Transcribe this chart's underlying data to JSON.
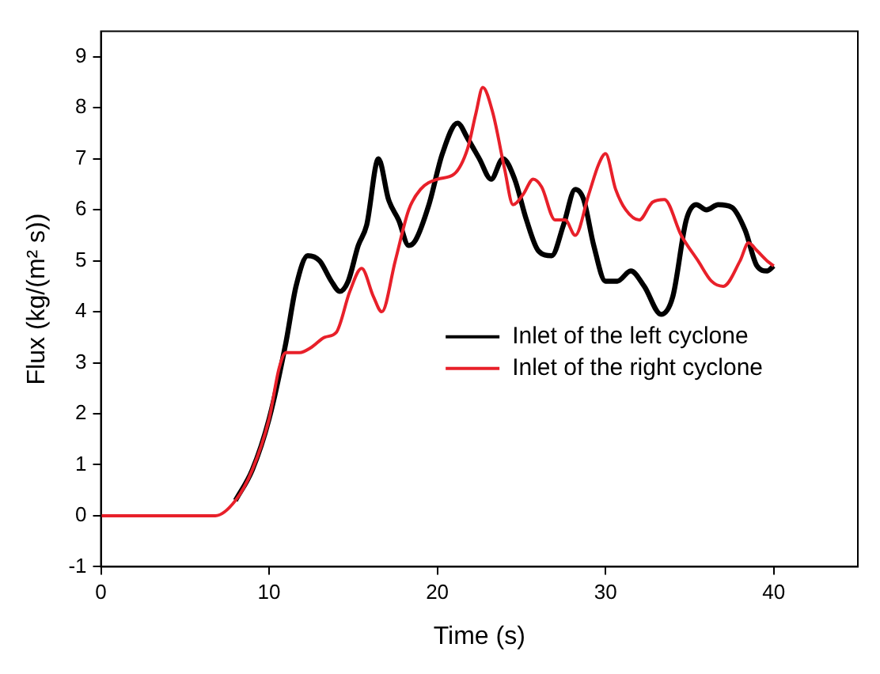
{
  "chart_data": {
    "type": "line",
    "xlabel": "Time (s)",
    "ylabel": "Flux (kg/(m² s))",
    "xlim": [
      0,
      45
    ],
    "xticks": [
      0,
      10,
      20,
      30,
      40
    ],
    "ylim": [
      -1,
      9.5
    ],
    "yticks": [
      -1,
      0,
      1,
      2,
      3,
      4,
      5,
      6,
      7,
      8,
      9
    ],
    "grid": false,
    "legend": "right",
    "marker": "none",
    "line_style": "solid",
    "series": [
      {
        "name": "Inlet of the left cyclone",
        "color": "#000000",
        "x": [
          8,
          9,
          10,
          11,
          11.6,
          12.3,
          13,
          13.7,
          14.2,
          14.7,
          15.3,
          15.8,
          16.5,
          17.1,
          17.7,
          18.3,
          18.7,
          19.5,
          20.3,
          21.2,
          21.8,
          22.5,
          23.2,
          23.9,
          24.6,
          25.3,
          26,
          26.8,
          27.5,
          28.2,
          28.7,
          29.3,
          30,
          30.7,
          31.5,
          32.3,
          33.3,
          34,
          34.8,
          35.4,
          36,
          36.7,
          37.5,
          38.3,
          39,
          39.6,
          40
        ],
        "values": [
          0.3,
          0.9,
          1.9,
          3.4,
          4.5,
          5.1,
          5,
          4.6,
          4.4,
          4.6,
          5.3,
          5.7,
          7,
          6.2,
          5.8,
          5.3,
          5.4,
          6.1,
          7.1,
          7.7,
          7.4,
          7,
          6.6,
          7,
          6.6,
          5.8,
          5.2,
          5.1,
          5.7,
          6.4,
          6.2,
          5.3,
          4.6,
          4.6,
          4.8,
          4.5,
          3.95,
          4.3,
          5.8,
          6.1,
          6,
          6.1,
          6.05,
          5.6,
          4.9,
          4.8,
          4.9
        ]
      },
      {
        "name": "Inlet of the right cyclone",
        "color": "#e8202a",
        "x": [
          0,
          6.8,
          8,
          9,
          10,
          10.6,
          11,
          11.8,
          12.5,
          13.3,
          14,
          14.8,
          15.5,
          16.2,
          16.7,
          17.5,
          18.3,
          19,
          20,
          21,
          21.8,
          22.3,
          22.7,
          23.3,
          24,
          24.5,
          25.1,
          25.7,
          26.2,
          27,
          27.6,
          28.2,
          29,
          29.6,
          30,
          30.6,
          31.2,
          32,
          32.8,
          33.5,
          34.5,
          35.5,
          36.3,
          37,
          38,
          38.5,
          39,
          39.6,
          40
        ],
        "values": [
          0,
          0,
          0.3,
          0.9,
          1.9,
          2.9,
          3.2,
          3.2,
          3.3,
          3.5,
          3.6,
          4.4,
          4.85,
          4.3,
          4,
          5,
          6,
          6.4,
          6.6,
          6.7,
          7.2,
          7.9,
          8.4,
          7.9,
          6.8,
          6.1,
          6.3,
          6.6,
          6.45,
          5.8,
          5.8,
          5.5,
          6.3,
          6.9,
          7.1,
          6.4,
          6,
          5.8,
          6.15,
          6.2,
          5.5,
          5,
          4.6,
          4.5,
          5,
          5.35,
          5.2,
          5,
          4.9
        ]
      }
    ]
  }
}
